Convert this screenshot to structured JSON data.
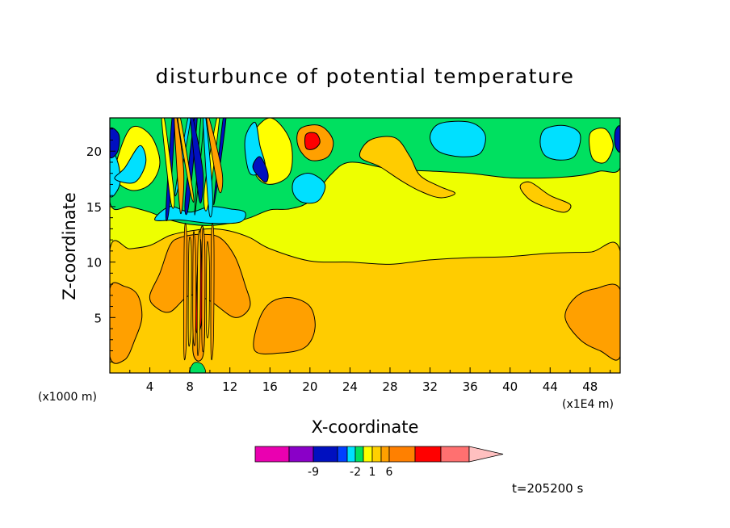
{
  "chart_data": {
    "type": "heatmap",
    "title": "disturbunce of potential temperature",
    "xlabel": "X-coordinate",
    "ylabel": "Z-coordinate",
    "x_unit_left": "(x1000 m)",
    "x_unit_right": "(x1E4 m)",
    "x_ticks": [
      4,
      8,
      12,
      16,
      20,
      24,
      28,
      32,
      36,
      40,
      44,
      48
    ],
    "y_ticks": [
      5,
      10,
      15,
      20
    ],
    "xlim": [
      0,
      51
    ],
    "ylim": [
      0,
      23
    ],
    "time_label": "t=205200 s",
    "colorbar": {
      "tick_labels": [
        {
          "label": "-9",
          "bin": 2
        },
        {
          "label": "-2",
          "bin": 5
        },
        {
          "label": "1",
          "bin": 7
        },
        {
          "label": "6",
          "bin": 9
        }
      ],
      "colors": [
        "#ea00b0",
        "#8a00c8",
        "#0010c0",
        "#0040ff",
        "#00e0ff",
        "#00e060",
        "#ffff00",
        "#ffd000",
        "#ffa000",
        "#ff8000",
        "#ff0000",
        "#ff7070",
        "#ffc0c0"
      ]
    },
    "regions": [
      {
        "level": "low_yellow",
        "color": "#ffcc00",
        "points": [
          [
            0,
            0
          ],
          [
            51,
            0
          ],
          [
            51,
            11
          ],
          [
            48,
            10.9
          ],
          [
            44,
            10.8
          ],
          [
            40,
            10.5
          ],
          [
            36,
            10.4
          ],
          [
            32,
            10.2
          ],
          [
            28,
            9.8
          ],
          [
            24,
            10
          ],
          [
            20,
            10.1
          ],
          [
            16,
            11.2
          ],
          [
            14,
            12.2
          ],
          [
            12,
            12.8
          ],
          [
            10,
            13
          ],
          [
            8,
            12.8
          ],
          [
            6,
            12.4
          ],
          [
            4,
            11.5
          ],
          [
            2,
            11.2
          ],
          [
            0,
            11.1
          ]
        ]
      },
      {
        "level": "orange_left",
        "color": "#ffa000",
        "points": [
          [
            0,
            1.5
          ],
          [
            1.5,
            1.2
          ],
          [
            2.5,
            3
          ],
          [
            3.2,
            5
          ],
          [
            2.8,
            7
          ],
          [
            1.5,
            7.8
          ],
          [
            0,
            7.6
          ]
        ]
      },
      {
        "level": "orange_right",
        "color": "#ffa000",
        "points": [
          [
            51,
            1.5
          ],
          [
            49,
            2
          ],
          [
            47,
            3
          ],
          [
            45.5,
            5
          ],
          [
            46.5,
            6.8
          ],
          [
            48.5,
            7.6
          ],
          [
            51,
            7.5
          ]
        ]
      },
      {
        "level": "orange_mid",
        "color": "#ffa000",
        "points": [
          [
            14.5,
            2
          ],
          [
            17,
            1.8
          ],
          [
            19.5,
            2.3
          ],
          [
            20.5,
            4
          ],
          [
            20,
            6
          ],
          [
            18,
            6.8
          ],
          [
            16,
            6.3
          ],
          [
            14.8,
            4.5
          ]
        ]
      },
      {
        "level": "orange_core",
        "color": "#ffa000",
        "points": [
          [
            4,
            7
          ],
          [
            5,
            9
          ],
          [
            6,
            11.5
          ],
          [
            7,
            12.2
          ],
          [
            9,
            12.5
          ],
          [
            11,
            12.2
          ],
          [
            12.5,
            10.5
          ],
          [
            13.5,
            8
          ],
          [
            14,
            6
          ],
          [
            12.5,
            5
          ],
          [
            10,
            6.5
          ],
          [
            8,
            7
          ],
          [
            6,
            5.5
          ],
          [
            4.5,
            6
          ]
        ]
      },
      {
        "level": "upper_green",
        "color": "#00e060",
        "points": [
          [
            0,
            23
          ],
          [
            51,
            23
          ],
          [
            51,
            18.5
          ],
          [
            49,
            18.2
          ],
          [
            47,
            17.8
          ],
          [
            44,
            17.6
          ],
          [
            40,
            17.6
          ],
          [
            36,
            18
          ],
          [
            32,
            18.2
          ],
          [
            28,
            18.4
          ],
          [
            24,
            19
          ],
          [
            22,
            17.8
          ],
          [
            20,
            15.5
          ],
          [
            18,
            14.8
          ],
          [
            16,
            14.7
          ],
          [
            14,
            14
          ],
          [
            12,
            13.5
          ],
          [
            10,
            13.3
          ],
          [
            8,
            13.4
          ],
          [
            6,
            13.8
          ],
          [
            4,
            14.5
          ],
          [
            2,
            15
          ],
          [
            0,
            15.4
          ]
        ]
      },
      {
        "level": "yellow_blob_a",
        "color": "#ffff00",
        "points": [
          [
            16,
            23
          ],
          [
            14,
            21
          ],
          [
            14.5,
            18
          ],
          [
            16,
            17
          ],
          [
            18,
            18
          ],
          [
            18,
            21
          ]
        ]
      },
      {
        "level": "yellow_blob_b",
        "color": "#ffff00",
        "points": [
          [
            0.5,
            18
          ],
          [
            2,
            16.5
          ],
          [
            4,
            17
          ],
          [
            5,
            19
          ],
          [
            4,
            21.5
          ],
          [
            2,
            22
          ]
        ]
      },
      {
        "level": "orange_upper",
        "color": "#ffcc00",
        "points": [
          [
            25,
            19.5
          ],
          [
            26,
            21
          ],
          [
            28.5,
            21.2
          ],
          [
            30,
            19.5
          ],
          [
            31,
            17.8
          ],
          [
            33,
            16.8
          ],
          [
            34.5,
            16.2
          ],
          [
            33,
            15.8
          ],
          [
            31,
            16.4
          ],
          [
            29,
            17.4
          ],
          [
            27,
            18.6
          ]
        ]
      },
      {
        "level": "orange_upper_b",
        "color": "#ffcc00",
        "points": [
          [
            41,
            16.8
          ],
          [
            42,
            17.2
          ],
          [
            44,
            16
          ],
          [
            46,
            15.2
          ],
          [
            45.5,
            14.5
          ],
          [
            44,
            14.8
          ],
          [
            42,
            15.6
          ]
        ]
      },
      {
        "level": "cyan_a",
        "color": "#00e0ff",
        "points": [
          [
            33,
            22.5
          ],
          [
            36,
            22.6
          ],
          [
            37.5,
            21.5
          ],
          [
            37,
            19.8
          ],
          [
            35,
            19.5
          ],
          [
            32.8,
            20
          ],
          [
            32,
            21.3
          ]
        ]
      },
      {
        "level": "cyan_b",
        "color": "#00e0ff",
        "points": [
          [
            43.5,
            22
          ],
          [
            45.5,
            22.3
          ],
          [
            47,
            21.5
          ],
          [
            46.5,
            19.6
          ],
          [
            45,
            19.2
          ],
          [
            43.5,
            19.6
          ],
          [
            43,
            20.8
          ]
        ]
      },
      {
        "level": "cyan_c",
        "color": "#00e0ff",
        "points": [
          [
            18.5,
            17.5
          ],
          [
            20,
            18
          ],
          [
            21.5,
            17
          ],
          [
            20.8,
            15.5
          ],
          [
            19.2,
            15.4
          ],
          [
            18.3,
            16.3
          ]
        ]
      },
      {
        "level": "cyan_d",
        "color": "#00e0ff",
        "points": [
          [
            0,
            16
          ],
          [
            1,
            17
          ],
          [
            0.8,
            19
          ],
          [
            0,
            20
          ]
        ]
      },
      {
        "level": "orange_e",
        "color": "#ffa000",
        "points": [
          [
            19,
            22
          ],
          [
            21,
            22.3
          ],
          [
            22.3,
            21
          ],
          [
            21.8,
            19.5
          ],
          [
            20,
            19.2
          ],
          [
            18.8,
            20.5
          ]
        ]
      },
      {
        "level": "red_e",
        "color": "#ff0000",
        "points": [
          [
            19.6,
            21.5
          ],
          [
            20.6,
            21.6
          ],
          [
            21,
            20.8
          ],
          [
            20.4,
            20.2
          ],
          [
            19.6,
            20.3
          ]
        ]
      },
      {
        "level": "yellow_f",
        "color": "#ffff00",
        "points": [
          [
            48,
            21.6
          ],
          [
            49.5,
            22
          ],
          [
            50.3,
            20.5
          ],
          [
            49.5,
            19
          ],
          [
            48.2,
            19.4
          ]
        ]
      },
      {
        "level": "blue_g",
        "color": "#0010c0",
        "points": [
          [
            0,
            19.5
          ],
          [
            0.8,
            20
          ],
          [
            0.9,
            21.5
          ],
          [
            0,
            22
          ]
        ]
      },
      {
        "level": "blue_h",
        "color": "#0010c0",
        "points": [
          [
            51,
            20
          ],
          [
            50.5,
            20.5
          ],
          [
            50.5,
            21.8
          ],
          [
            51,
            22.2
          ]
        ]
      },
      {
        "level": "cyan_i",
        "color": "#00e0ff",
        "points": [
          [
            4.5,
            13.8
          ],
          [
            6,
            15
          ],
          [
            8,
            14.5
          ],
          [
            10,
            15
          ],
          [
            12,
            14.8
          ],
          [
            13.5,
            14.5
          ],
          [
            13,
            13.6
          ],
          [
            10,
            13.5
          ],
          [
            7,
            13.8
          ]
        ]
      },
      {
        "level": "cyan_j",
        "color": "#00e0ff",
        "points": [
          [
            13.5,
            21
          ],
          [
            14.5,
            22.6
          ],
          [
            15,
            20.5
          ],
          [
            15.5,
            18.5
          ],
          [
            14,
            18
          ]
        ]
      },
      {
        "level": "cyan_k",
        "color": "#00e0ff",
        "points": [
          [
            0.5,
            17.5
          ],
          [
            1.5,
            18.5
          ],
          [
            3,
            20.5
          ],
          [
            3.6,
            19
          ],
          [
            2.5,
            17.2
          ]
        ]
      },
      {
        "level": "blue_l",
        "color": "#0010c0",
        "points": [
          [
            14.3,
            18.5
          ],
          [
            15,
            19.5
          ],
          [
            15.8,
            18
          ],
          [
            15.5,
            17.2
          ]
        ]
      },
      {
        "level": "orange_m",
        "color": "#ffa000",
        "points": [
          [
            8.3,
            2
          ],
          [
            8.7,
            8
          ],
          [
            9,
            12.5
          ],
          [
            9.4,
            12.6
          ],
          [
            9.5,
            6
          ],
          [
            9.3,
            1.5
          ]
        ]
      },
      {
        "level": "red_n",
        "color": "#ff0000",
        "points": [
          [
            8.6,
            4
          ],
          [
            8.8,
            10
          ],
          [
            9.1,
            11.8
          ],
          [
            9.2,
            5
          ]
        ]
      }
    ]
  }
}
